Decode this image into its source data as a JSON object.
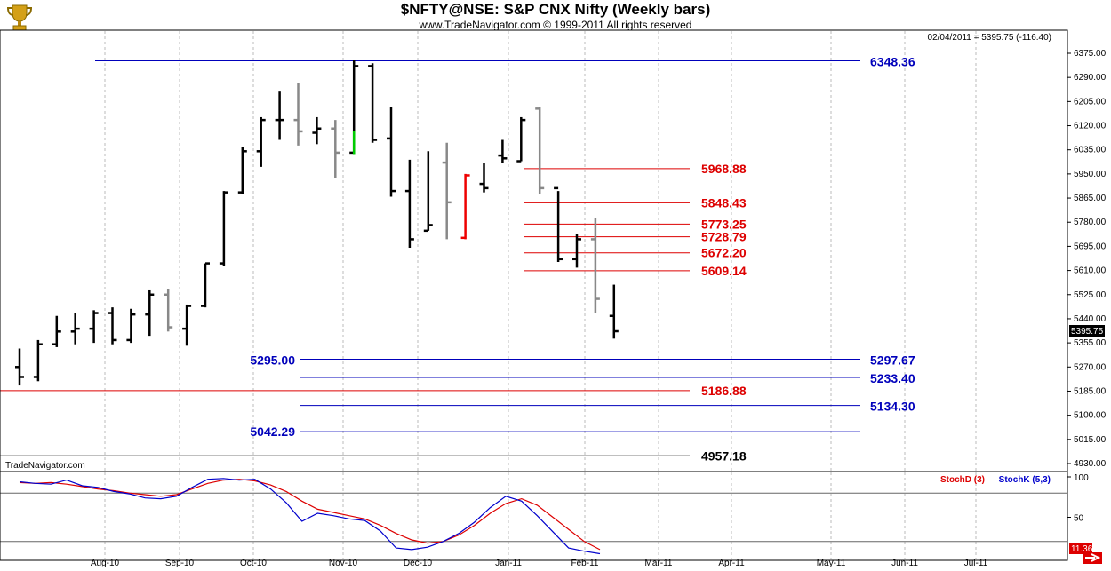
{
  "title": "$NFTY@NSE:  S&P CNX Nifty  (Weekly bars)",
  "subtitle": "www.TradeNavigator.com © 1999-2011 All rights reserved",
  "last_quote": "02/04/2011 = 5395.75 (-116.40)",
  "watermark": "TradeNavigator.com",
  "price_label": "5395.75",
  "stoch_value_label": "11.36",
  "colors": {
    "up_bar": "#000000",
    "down_bar": "#888888",
    "green_bar": "#00cc00",
    "red_bar": "#ee0000",
    "fib_red": "#dd0000",
    "level_blue": "#0000bb",
    "level_black": "#000000",
    "stochD": "#dd0000",
    "stochK": "#0000cc",
    "grid": "#bbbbbb"
  },
  "chart_data": [
    {
      "type": "ohlc",
      "title": "$NFTY@NSE:  S&P CNX Nifty  (Weekly bars)",
      "ylim": [
        4900,
        6400
      ],
      "y_ticks": [
        "6375.00",
        "6290.00",
        "6205.00",
        "6120.00",
        "6035.00",
        "5950.00",
        "5865.00",
        "5780.00",
        "5695.00",
        "5610.00",
        "5525.00",
        "5440.00",
        "5355.00",
        "5270.00",
        "5185.00",
        "5100.00",
        "5015.00",
        "4930.00"
      ],
      "x_ticks": [
        "Aug-10",
        "Sep-10",
        "Oct-10",
        "Nov-10",
        "Dec-10",
        "Jan-11",
        "Feb-11",
        "Mar-11",
        "Apr-11",
        "May-11",
        "Jun-11",
        "Jul-11"
      ],
      "bars": [
        {
          "o": 5270,
          "h": 5335,
          "l": 5205,
          "c": 5235,
          "col": "up"
        },
        {
          "o": 5235,
          "h": 5365,
          "l": 5220,
          "c": 5350,
          "col": "up"
        },
        {
          "o": 5350,
          "h": 5450,
          "l": 5340,
          "c": 5395,
          "col": "up"
        },
        {
          "o": 5395,
          "h": 5460,
          "l": 5350,
          "c": 5405,
          "col": "up"
        },
        {
          "o": 5405,
          "h": 5470,
          "l": 5355,
          "c": 5460,
          "col": "up"
        },
        {
          "o": 5460,
          "h": 5480,
          "l": 5350,
          "c": 5365,
          "col": "up"
        },
        {
          "o": 5365,
          "h": 5475,
          "l": 5355,
          "c": 5455,
          "col": "up"
        },
        {
          "o": 5455,
          "h": 5540,
          "l": 5380,
          "c": 5525,
          "col": "up"
        },
        {
          "o": 5525,
          "h": 5545,
          "l": 5395,
          "c": 5410,
          "col": "down"
        },
        {
          "o": 5405,
          "h": 5490,
          "l": 5345,
          "c": 5485,
          "col": "up"
        },
        {
          "o": 5485,
          "h": 5635,
          "l": 5480,
          "c": 5635,
          "col": "up"
        },
        {
          "o": 5635,
          "h": 5890,
          "l": 5625,
          "c": 5885,
          "col": "up"
        },
        {
          "o": 5885,
          "h": 6045,
          "l": 5880,
          "c": 6030,
          "col": "up"
        },
        {
          "o": 6030,
          "h": 6150,
          "l": 5975,
          "c": 6140,
          "col": "up"
        },
        {
          "o": 6140,
          "h": 6240,
          "l": 6070,
          "c": 6140,
          "col": "up"
        },
        {
          "o": 6140,
          "h": 6270,
          "l": 6050,
          "c": 6100,
          "col": "down"
        },
        {
          "o": 6095,
          "h": 6150,
          "l": 6055,
          "c": 6110,
          "col": "up"
        },
        {
          "o": 6110,
          "h": 6140,
          "l": 5935,
          "c": 6025,
          "col": "down"
        },
        {
          "o": 6025,
          "h": 6350,
          "l": 6020,
          "c": 6330,
          "col": "up"
        },
        {
          "o": 6330,
          "h": 6340,
          "l": 6060,
          "c": 6070,
          "col": "up"
        },
        {
          "o": 6075,
          "h": 6185,
          "l": 5870,
          "c": 5890,
          "col": "up"
        },
        {
          "o": 5890,
          "h": 6000,
          "l": 5690,
          "c": 5720,
          "col": "up"
        },
        {
          "o": 5750,
          "h": 6030,
          "l": 5750,
          "c": 5770,
          "col": "up"
        },
        {
          "o": 5990,
          "h": 6060,
          "l": 5720,
          "c": 5850,
          "col": "down"
        },
        {
          "o": 5725,
          "h": 5950,
          "l": 5720,
          "c": 5945,
          "col": "red"
        },
        {
          "o": 5915,
          "h": 5990,
          "l": 5885,
          "c": 5900,
          "col": "up"
        },
        {
          "o": 6015,
          "h": 6070,
          "l": 5990,
          "c": 6005,
          "col": "up"
        },
        {
          "o": 5995,
          "h": 6150,
          "l": 5995,
          "c": 6140,
          "col": "up"
        },
        {
          "o": 6180,
          "h": 6185,
          "l": 5880,
          "c": 5900,
          "col": "down"
        },
        {
          "o": 5900,
          "h": 5890,
          "l": 5640,
          "c": 5650,
          "col": "up"
        },
        {
          "o": 5650,
          "h": 5740,
          "l": 5620,
          "c": 5720,
          "col": "up"
        },
        {
          "o": 5720,
          "h": 5795,
          "l": 5460,
          "c": 5510,
          "col": "down"
        },
        {
          "o": 5450,
          "h": 5560,
          "l": 5370,
          "c": 5396,
          "col": "up"
        }
      ],
      "levels": [
        {
          "value": 6348.36,
          "label": "6348.36",
          "color": "blue",
          "side": "right"
        },
        {
          "value": 5968.88,
          "label": "5968.88",
          "color": "red",
          "side": "right"
        },
        {
          "value": 5848.43,
          "label": "5848.43",
          "color": "red",
          "side": "right"
        },
        {
          "value": 5773.25,
          "label": "5773.25",
          "color": "red",
          "side": "right"
        },
        {
          "value": 5728.79,
          "label": "5728.79",
          "color": "red",
          "side": "right"
        },
        {
          "value": 5672.2,
          "label": "5672.20",
          "color": "red",
          "side": "right"
        },
        {
          "value": 5609.14,
          "label": "5609.14",
          "color": "red",
          "side": "right"
        },
        {
          "value": 5297.67,
          "label": "5297.67",
          "color": "blue",
          "side": "right"
        },
        {
          "value": 5295.0,
          "label": "5295.00",
          "color": "blue",
          "side": "left"
        },
        {
          "value": 5233.4,
          "label": "5233.40",
          "color": "blue",
          "side": "right"
        },
        {
          "value": 5186.88,
          "label": "5186.88",
          "color": "red",
          "side": "right"
        },
        {
          "value": 5134.3,
          "label": "5134.30",
          "color": "blue",
          "side": "right"
        },
        {
          "value": 5042.29,
          "label": "5042.29",
          "color": "blue",
          "side": "left"
        },
        {
          "value": 4957.18,
          "label": "4957.18",
          "color": "black",
          "side": "right"
        }
      ]
    },
    {
      "type": "line",
      "ylim": [
        0,
        100
      ],
      "y_ticks": [
        "100",
        "50"
      ],
      "series": [
        {
          "name": "StochD (3)",
          "color": "#dd0000",
          "values": [
            93,
            92,
            93,
            91,
            88,
            85,
            83,
            80,
            78,
            76,
            78,
            85,
            92,
            96,
            97,
            95,
            90,
            82,
            70,
            60,
            56,
            52,
            48,
            40,
            30,
            22,
            18,
            20,
            28,
            40,
            55,
            67,
            73,
            65,
            50,
            35,
            20,
            10
          ]
        },
        {
          "name": "StochK (5,3)",
          "color": "#0000cc",
          "values": [
            94,
            92,
            91,
            96,
            89,
            87,
            82,
            79,
            74,
            73,
            76,
            87,
            97,
            98,
            96,
            97,
            85,
            68,
            45,
            55,
            52,
            48,
            46,
            33,
            12,
            10,
            13,
            20,
            30,
            44,
            62,
            76,
            70,
            52,
            32,
            12,
            8,
            5
          ]
        }
      ]
    }
  ]
}
